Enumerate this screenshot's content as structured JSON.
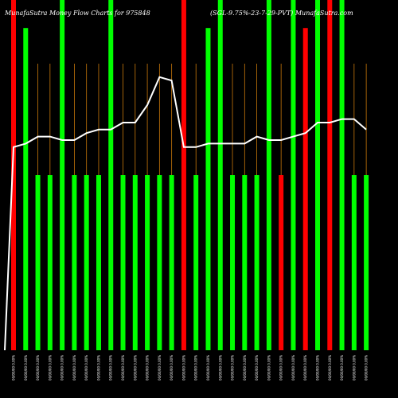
{
  "chart_data": {
    "type": "bar",
    "title_left": "MunafaSutra  Money Flow  Charts for 975848",
    "title_right": "(SGL-9.75%-23-7-29-PVT) MunafaSutra.com",
    "bar_values": [
      100,
      92,
      50,
      50,
      100,
      50,
      50,
      50,
      100,
      50,
      50,
      50,
      50,
      50,
      100,
      50,
      92,
      100,
      50,
      50,
      50,
      100,
      50,
      100,
      92,
      100,
      100,
      100,
      50,
      50
    ],
    "bar_colors": [
      "red",
      "green",
      "green",
      "green",
      "green",
      "green",
      "green",
      "green",
      "green",
      "green",
      "green",
      "green",
      "green",
      "green",
      "red",
      "green",
      "green",
      "green",
      "green",
      "green",
      "green",
      "green",
      "red",
      "green",
      "red",
      "green",
      "red",
      "green",
      "green",
      "green"
    ],
    "line_values": [
      58,
      59,
      61,
      61,
      60,
      60,
      62,
      63,
      63,
      65,
      65,
      70,
      78,
      77,
      58,
      58,
      59,
      59,
      59,
      59,
      61,
      60,
      60,
      61,
      62,
      65,
      65,
      66,
      66,
      63
    ],
    "line_start": 0,
    "colors": {
      "green": "#00ff00",
      "red": "#ff0000",
      "line": "#ffffff",
      "vline": "#c8780a",
      "background": "#000000"
    },
    "xlabels": [
      "00/00/00 0.00%",
      "00/00/00 0.00%",
      "00/00/00 0.00%",
      "00/00/00 0.00%",
      "00/00/00 0.00%",
      "00/00/00 0.00%",
      "00/00/00 0.00%",
      "00/00/00 0.00%",
      "00/00/00 0.00%",
      "00/00/00 0.00%",
      "00/00/00 0.00%",
      "00/00/00 0.00%",
      "00/00/00 0.00%",
      "00/00/00 0.00%",
      "00/00/00 0.00%",
      "00/00/00 0.00%",
      "00/00/00 0.00%",
      "00/00/00 0.00%",
      "00/00/00 0.00%",
      "00/00/00 0.00%",
      "00/00/00 0.00%",
      "00/00/00 0.00%",
      "00/00/00 0.00%",
      "00/00/00 0.00%",
      "00/00/00 0.00%",
      "00/00/00 0.00%",
      "00/00/00 0.00%",
      "00/00/00 0.00%",
      "00/00/00 0.00%",
      "00/00/00 0.00%"
    ],
    "grid": false,
    "legend": "none"
  }
}
